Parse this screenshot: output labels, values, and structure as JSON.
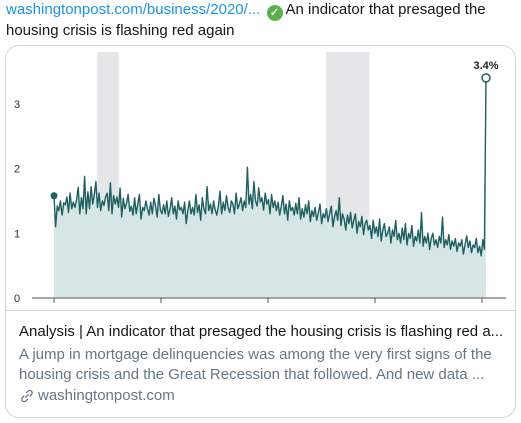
{
  "tweet": {
    "url_text": "washingtonpost.com/business/2020/...",
    "text": "An indicator that presaged the housing crisis is flashing red again",
    "check_icon": "check-circle-icon",
    "colors": {
      "link": "#1b95e0",
      "check": "#5ab04f"
    }
  },
  "card": {
    "title": "Analysis | An indicator that presaged the housing crisis is flashing red a...",
    "description": "A jump in mortgage delinquencies was among the very first signs of the housing crisis and the Great Recession that followed. And new data ...",
    "domain": "washingtonpost.com",
    "domain_icon": "link-icon"
  },
  "chart_data": {
    "type": "area",
    "title": "",
    "xlabel": "",
    "ylabel": "",
    "ylim": [
      0,
      3.8
    ],
    "yticks": [
      "0",
      "1",
      "2",
      "3"
    ],
    "grid": false,
    "end_label": "3.4%",
    "colors": {
      "line": "#1f5f60",
      "fill": "#d6e6e6",
      "recession": "#e4e6e8"
    },
    "recessions": [
      [
        0.1,
        0.15
      ],
      [
        0.63,
        0.73
      ]
    ],
    "values": [
      1.58,
      1.1,
      1.42,
      1.35,
      1.5,
      1.28,
      1.47,
      1.44,
      1.56,
      1.32,
      1.62,
      1.38,
      1.48,
      1.4,
      1.52,
      1.71,
      1.3,
      1.55,
      1.38,
      1.88,
      1.3,
      1.64,
      1.38,
      1.72,
      1.45,
      1.6,
      1.8,
      1.4,
      1.62,
      1.35,
      1.5,
      1.43,
      1.56,
      1.62,
      1.35,
      1.78,
      1.3,
      1.58,
      1.45,
      1.56,
      1.4,
      1.7,
      1.25,
      1.54,
      1.38,
      1.46,
      1.6,
      1.34,
      1.42,
      1.28,
      1.55,
      1.3,
      1.45,
      1.6,
      1.22,
      1.4,
      1.35,
      1.5,
      1.38,
      1.28,
      1.48,
      1.3,
      1.54,
      1.42,
      1.25,
      1.6,
      1.36,
      1.3,
      1.44,
      1.3,
      1.5,
      1.26,
      1.38,
      1.55,
      1.3,
      1.42,
      1.22,
      1.5,
      1.36,
      1.4,
      1.3,
      1.48,
      1.15,
      1.35,
      1.5,
      1.3,
      1.4,
      1.28,
      1.6,
      1.32,
      1.44,
      1.2,
      1.55,
      1.38,
      1.3,
      1.72,
      1.35,
      1.45,
      1.3,
      1.5,
      1.36,
      1.28,
      1.42,
      1.65,
      1.3,
      1.48,
      1.35,
      1.58,
      1.4,
      1.32,
      1.5,
      1.45,
      1.3,
      1.62,
      1.38,
      1.45,
      1.55,
      1.35,
      1.5,
      1.4,
      2.02,
      1.45,
      1.6,
      1.38,
      1.8,
      1.5,
      1.42,
      1.7,
      1.48,
      1.55,
      1.36,
      1.62,
      1.45,
      1.52,
      1.3,
      1.6,
      1.4,
      1.5,
      1.35,
      1.48,
      1.28,
      1.42,
      1.58,
      1.3,
      1.45,
      1.2,
      1.5,
      1.35,
      1.4,
      1.28,
      1.46,
      1.3,
      1.55,
      1.22,
      1.38,
      1.25,
      1.44,
      1.3,
      1.5,
      1.18,
      1.35,
      1.26,
      1.4,
      1.2,
      1.32,
      1.45,
      1.15,
      1.3,
      1.24,
      1.38,
      1.18,
      1.3,
      1.42,
      1.1,
      1.25,
      1.35,
      1.2,
      1.55,
      1.12,
      1.3,
      1.22,
      1.05,
      1.28,
      1.15,
      1.32,
      1.08,
      1.2,
      1.3,
      1.0,
      1.18,
      1.1,
      1.26,
      0.98,
      1.15,
      1.2,
      1.05,
      1.12,
      0.92,
      1.2,
      1.0,
      1.1,
      0.95,
      1.22,
      0.88,
      1.05,
      1.15,
      0.95,
      1.0,
      1.1,
      0.85,
      1.05,
      0.95,
      1.2,
      0.9,
      1.0,
      0.85,
      1.08,
      0.9,
      1.15,
      0.82,
      1.0,
      0.92,
      1.12,
      0.8,
      0.95,
      0.88,
      1.05,
      0.85,
      1.32,
      0.8,
      0.95,
      0.85,
      1.0,
      0.75,
      0.92,
      1.0,
      0.82,
      0.9,
      0.78,
      0.95,
      0.85,
      1.25,
      0.78,
      0.9,
      0.82,
      0.98,
      0.75,
      0.88,
      0.8,
      0.92,
      0.72,
      0.85,
      0.8,
      0.9,
      0.68,
      0.82,
      0.96,
      0.78,
      0.88,
      0.7,
      0.82,
      0.78,
      0.92,
      0.7,
      0.8,
      0.65,
      0.9,
      0.75,
      3.4
    ]
  }
}
